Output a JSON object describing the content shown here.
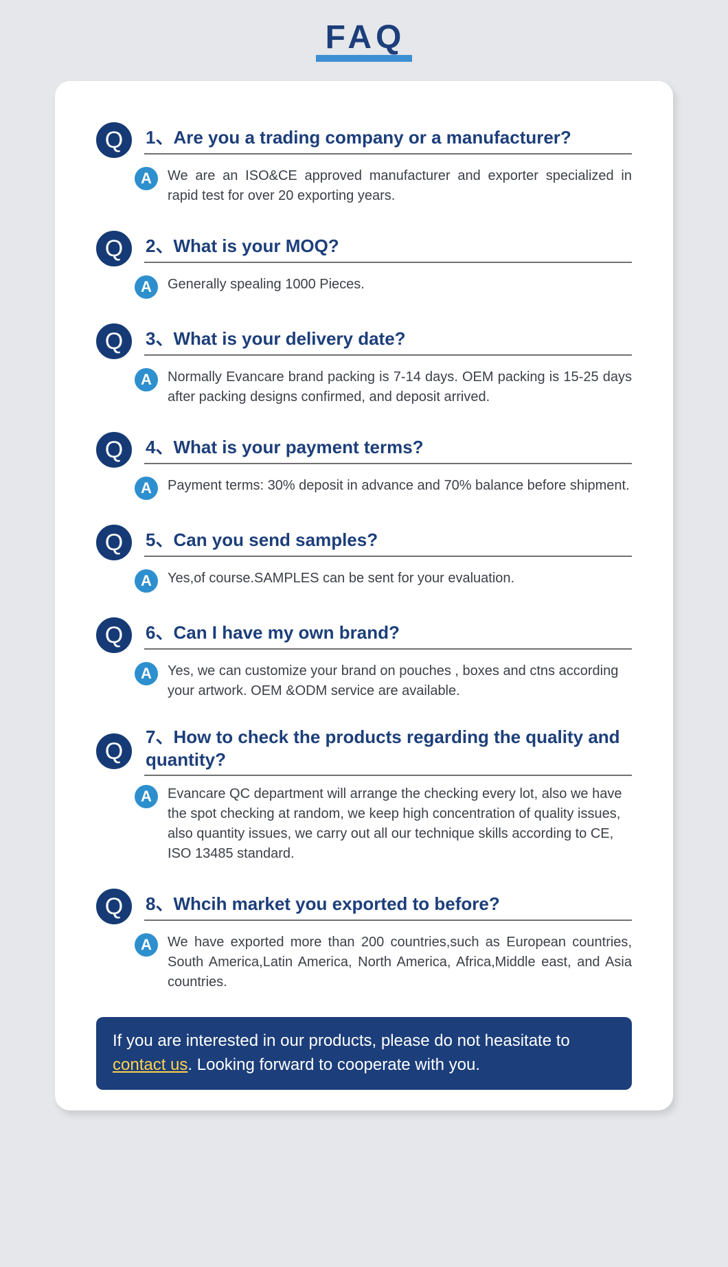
{
  "colors": {
    "page_bg": "#e5e7ea",
    "card_bg": "#ffffff",
    "title_text": "#1c3e7a",
    "title_underline": "#3d8fd4",
    "q_badge_bg": "#163a75",
    "q_text": "#1c3e7a",
    "q_underline": "#707070",
    "a_badge_bg": "#2e8fce",
    "a_text": "#3b3f47",
    "cta_bg": "#1c3e7a",
    "cta_text": "#ffffff",
    "cta_link": "#ffd34d"
  },
  "title": "FAQ",
  "q_label": "Q",
  "a_label": "A",
  "items": [
    {
      "q": "1、Are you a trading company or a manufacturer?",
      "a": "We are an ISO&CE approved manufacturer and exporter specialized in rapid test for over 20 exporting years.",
      "justify": true
    },
    {
      "q": "2、What is your MOQ?",
      "a": "Generally spealing 1000 Pieces.",
      "justify": false
    },
    {
      "q": "3、What is your delivery date?",
      "a": "Normally Evancare brand packing is 7-14 days.  OEM packing is 15-25 days after packing designs confirmed, and deposit arrived.",
      "justify": true
    },
    {
      "q": "4、What is your payment terms?",
      "a": "Payment terms: 30% deposit in advance and 70% balance before shipment.",
      "justify": true
    },
    {
      "q": "5、Can you send samples?",
      "a": "Yes,of course.SAMPLES can be sent for your evaluation.",
      "justify": false
    },
    {
      "q": "6、Can I have my own brand?",
      "a": "Yes, we can customize your brand on pouches , boxes and ctns according your artwork.  OEM &ODM service are available.",
      "justify": false
    },
    {
      "q": "7、How to check the products regarding the quality and quantity?",
      "a": "Evancare QC department will arrange the checking every lot, also we have the spot checking at random, we keep high concentration of quality issues, also quantity issues,  we carry out all our technique skills according to  CE, ISO 13485 standard.",
      "justify": false
    },
    {
      "q": "8、Whcih market you exported to before?",
      "a": "We have exported more than 200 countries,such as European countries, South America,Latin America, North America, Africa,Middle east, and Asia countries.",
      "justify": true
    }
  ],
  "cta": {
    "before": "If you are interested in our products, please do not heasitate to ",
    "link": "contact us",
    "after": ". Looking forward to cooperate with you."
  }
}
